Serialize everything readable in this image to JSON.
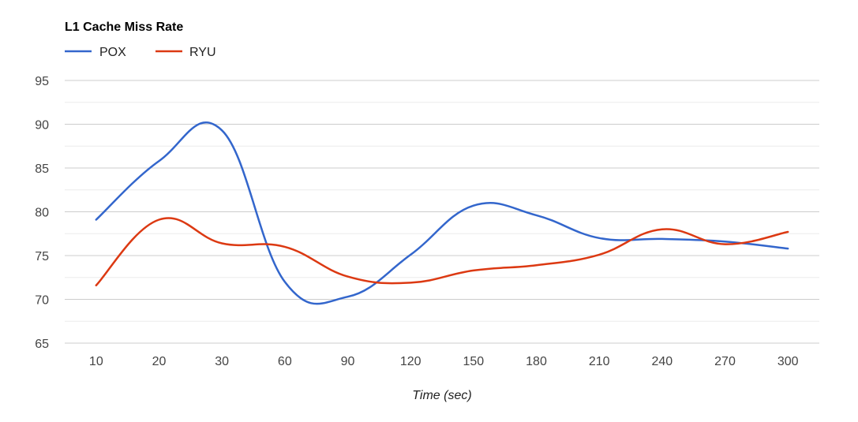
{
  "chart_data": {
    "type": "line",
    "title": "L1 Cache Miss Rate",
    "xlabel": "Time (sec)",
    "ylabel": "",
    "categories": [
      "10",
      "20",
      "30",
      "60",
      "90",
      "120",
      "150",
      "180",
      "210",
      "240",
      "270",
      "300"
    ],
    "ylim": [
      65,
      95
    ],
    "yticks": [
      65,
      70,
      75,
      80,
      85,
      90,
      95
    ],
    "grid": true,
    "legend_position": "top-left",
    "series": [
      {
        "name": "POX",
        "color": "#3366cc",
        "values": [
          79.1,
          85.8,
          89.3,
          72.0,
          70.3,
          75.1,
          80.7,
          79.6,
          77.0,
          76.9,
          76.6,
          75.8
        ]
      },
      {
        "name": "RYU",
        "color": "#dc3912",
        "values": [
          71.6,
          79.1,
          76.4,
          76.0,
          72.6,
          71.9,
          73.3,
          73.9,
          75.1,
          78.0,
          76.3,
          77.7
        ]
      }
    ]
  }
}
